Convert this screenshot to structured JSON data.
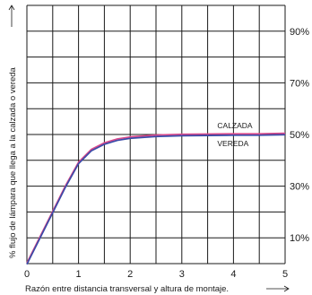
{
  "chart_data": {
    "type": "line",
    "title": "",
    "xlabel": "Razón entre distancia transversal y altura de montaje.",
    "ylabel": "% flujo de lámpara que llega a la calzada o vereda",
    "xlim": [
      0,
      5
    ],
    "ylim": [
      0,
      100
    ],
    "x_ticks": [
      "0",
      "1",
      "2",
      "3",
      "4",
      "5"
    ],
    "y_ticks_right": [
      "10%",
      "30%",
      "50%",
      "70%",
      "90%"
    ],
    "y_tick_values": [
      10,
      30,
      50,
      70,
      90
    ],
    "grid": true,
    "series": [
      {
        "color": "#d94a8c",
        "x": [
          0,
          0.25,
          0.5,
          0.75,
          1,
          1.25,
          1.5,
          1.75,
          2,
          2.5,
          3,
          3.5,
          4,
          4.5,
          5
        ],
        "values": [
          0,
          10,
          20,
          30,
          39,
          44,
          46.5,
          48,
          48.8,
          49.5,
          49.8,
          49.9,
          50,
          50,
          50.2
        ]
      },
      {
        "color": "#3a4ba8",
        "x": [
          0,
          0.25,
          0.5,
          0.75,
          1,
          1.25,
          1.5,
          1.75,
          2,
          2.5,
          3,
          3.5,
          4,
          4.5,
          5
        ],
        "values": [
          0,
          10,
          20,
          30,
          39,
          44,
          46.5,
          48,
          48.8,
          49.5,
          49.8,
          49.9,
          50,
          50,
          50.2
        ]
      }
    ],
    "annotations": [
      {
        "text": "CALZADA",
        "x": 4.0,
        "y": 53.5
      },
      {
        "text": "VEREDA",
        "x": 4.0,
        "y": 46.5
      }
    ]
  }
}
